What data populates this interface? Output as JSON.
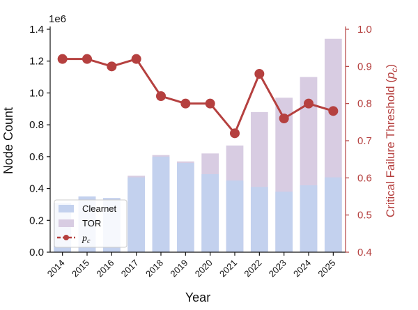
{
  "chart_data": {
    "type": "bar",
    "title": "",
    "xlabel": "Year",
    "ylabel": "Node Count",
    "ylabel_right": "Critical Failure Threshold",
    "ylabel_right_symbol": "p",
    "ylabel_right_subscript": "c",
    "y_offset_label": "1e6",
    "ylim": [
      0,
      1.4
    ],
    "ylim_right": [
      0.4,
      1.0
    ],
    "y_ticks": [
      "0.0",
      "0.2",
      "0.4",
      "0.6",
      "0.8",
      "1.0",
      "1.2",
      "1.4"
    ],
    "y_right_ticks": [
      "0.4",
      "0.5",
      "0.6",
      "0.7",
      "0.8",
      "0.9",
      "1.0"
    ],
    "categories": [
      "2014",
      "2015",
      "2016",
      "2017",
      "2018",
      "2019",
      "2020",
      "2021",
      "2022",
      "2023",
      "2024",
      "2025"
    ],
    "series": [
      {
        "name": "Clearnet",
        "type": "bar",
        "axis": "left",
        "color": "#c3d1ee",
        "values": [
          0.31,
          0.35,
          0.34,
          0.47,
          0.6,
          0.56,
          0.49,
          0.45,
          0.41,
          0.38,
          0.42,
          0.47
        ]
      },
      {
        "name": "TOR",
        "type": "bar",
        "axis": "left",
        "color": "#d8cce2",
        "values": [
          0.31,
          0.35,
          0.34,
          0.48,
          0.61,
          0.57,
          0.62,
          0.67,
          0.88,
          0.97,
          1.1,
          1.34
        ]
      },
      {
        "name": "p",
        "name_subscript": "c",
        "type": "line",
        "axis": "right",
        "color": "#b5403f",
        "values": [
          0.92,
          0.92,
          0.9,
          0.92,
          0.82,
          0.8,
          0.8,
          0.72,
          0.88,
          0.76,
          0.8,
          0.78
        ]
      }
    ],
    "legend": {
      "position": "lower-left",
      "entries": [
        "Clearnet",
        "TOR",
        "p"
      ]
    },
    "grid": false
  },
  "colors": {
    "axis": "#111111",
    "right_axis": "#b5403f",
    "legend_border": "#cccccc"
  }
}
